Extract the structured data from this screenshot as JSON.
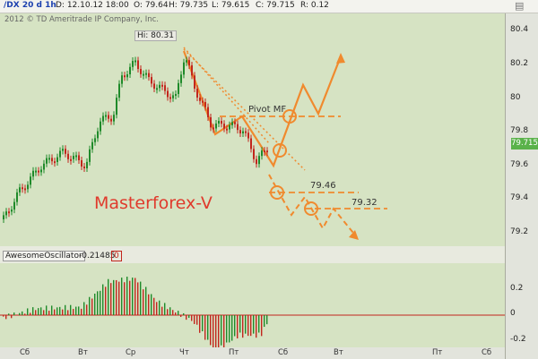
{
  "header": {
    "symbol": "/DX 20 d 1h",
    "date": "D: 12.10.12 18:00",
    "open": "O: 79.64",
    "high": "H: 79.735",
    "low": "L: 79.615",
    "close": "C: 79.715",
    "range": "R: 0.12",
    "window_icon": "window-controls-icon"
  },
  "chart": {
    "copyright": "2012 © TD Ameritrade IP Company, Inc.",
    "hi_label": "Hi: 80.31",
    "watermark": "Masterforex-V",
    "pivot_label": "Pivot MF",
    "level_1": "79.46",
    "level_2": "79.32",
    "last_price": "79.715",
    "price_axis": [
      "80.4",
      "80.2",
      "80",
      "79.8",
      "79.6",
      "79.4",
      "79.2"
    ]
  },
  "indicator": {
    "name": "AwesomeOscillator",
    "value": "-0.21485",
    "value2": "0",
    "axis": [
      "0.2",
      "0",
      "-0.2"
    ]
  },
  "time_axis": [
    "Сб",
    "Вт",
    "Ср",
    "Чт",
    "Пт",
    "Сб",
    "Вт",
    "Пт",
    "Сб"
  ],
  "colors": {
    "bull": "#1f8a2a",
    "bear": "#c2261d",
    "accent": "#f08a2e",
    "panel": "#d6e3c3"
  }
}
